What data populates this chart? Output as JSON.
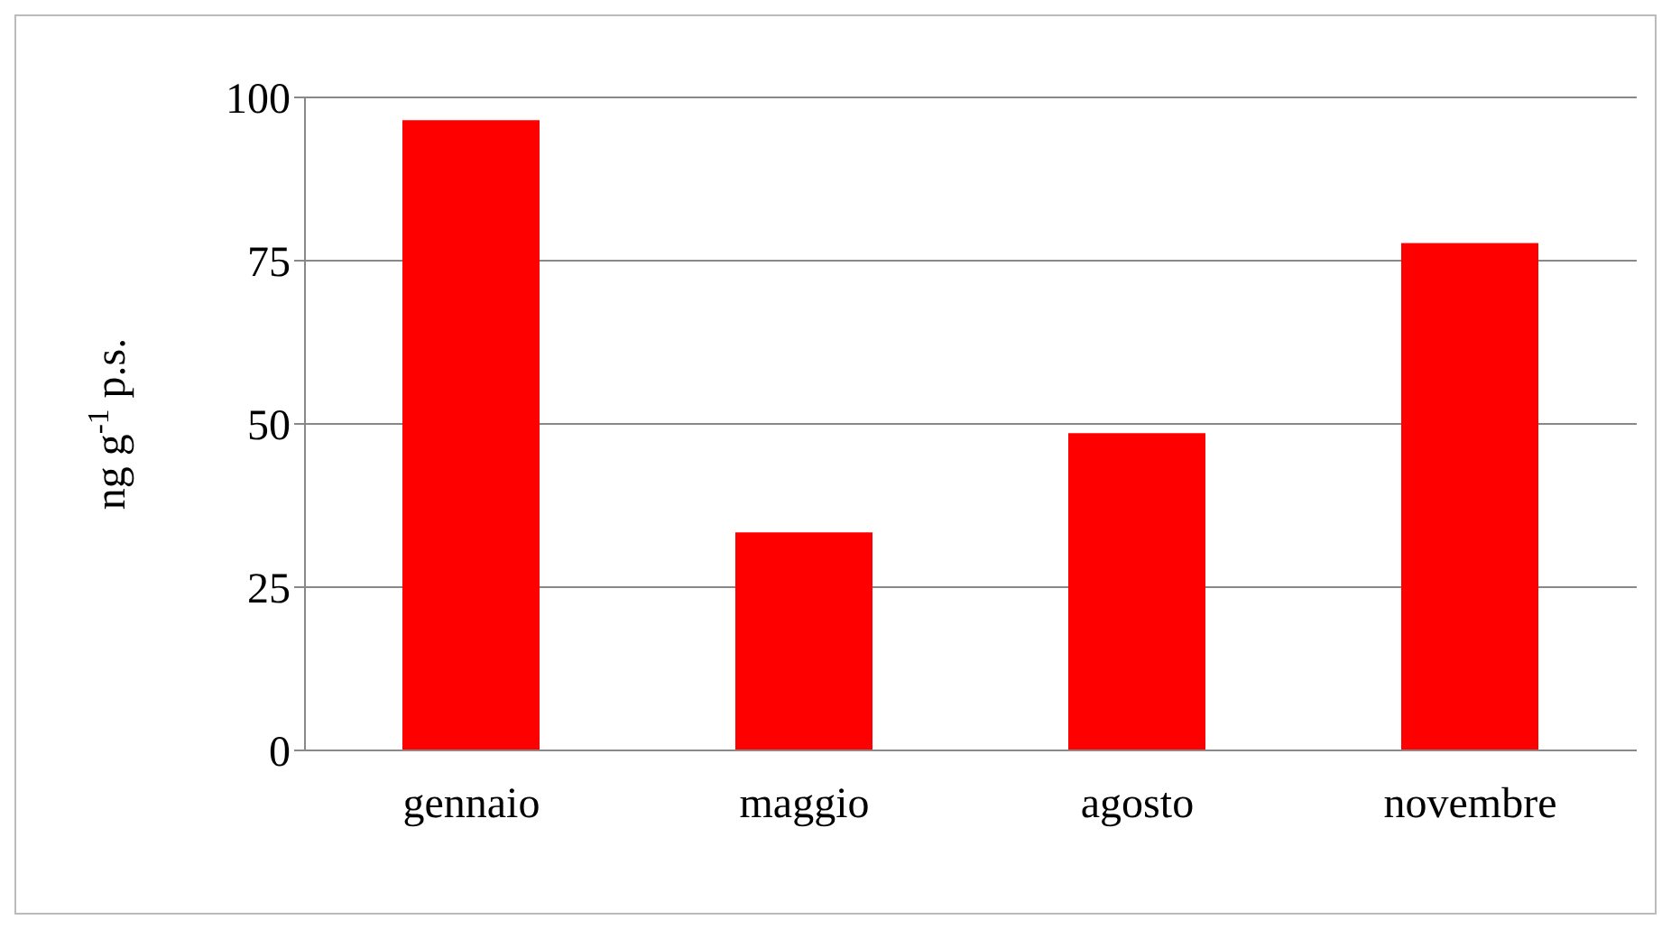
{
  "chart_data": {
    "type": "bar",
    "ylabel": "ng g$^{-1}$ p.s.",
    "categories": [
      "gennaio",
      "maggio",
      "agosto",
      "novembre"
    ],
    "values": [
      96.5,
      33.4,
      48.6,
      77.7
    ],
    "color": "#ff0000",
    "ylim": [
      0,
      100
    ],
    "yticks": [
      0,
      25,
      50,
      75,
      100
    ],
    "grid": "y"
  }
}
